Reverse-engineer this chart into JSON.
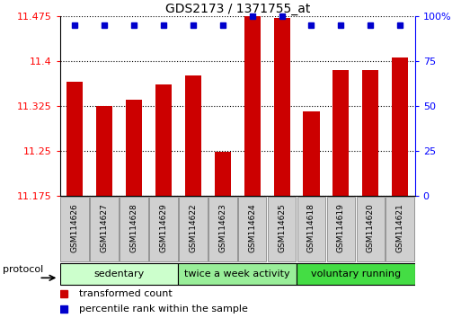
{
  "title": "GDS2173 / 1371755_at",
  "samples": [
    "GSM114626",
    "GSM114627",
    "GSM114628",
    "GSM114629",
    "GSM114622",
    "GSM114623",
    "GSM114624",
    "GSM114625",
    "GSM114618",
    "GSM114619",
    "GSM114620",
    "GSM114621"
  ],
  "red_values": [
    11.365,
    11.325,
    11.335,
    11.36,
    11.375,
    11.248,
    11.475,
    11.472,
    11.315,
    11.385,
    11.385,
    11.405
  ],
  "blue_values": [
    95,
    95,
    95,
    95,
    95,
    95,
    100,
    100,
    95,
    95,
    95,
    95
  ],
  "ymin": 11.175,
  "ymax": 11.475,
  "yticks": [
    11.175,
    11.25,
    11.325,
    11.4,
    11.475
  ],
  "y2ticks": [
    0,
    25,
    50,
    75,
    100
  ],
  "y2labels": [
    "0",
    "25",
    "50",
    "75",
    "100%"
  ],
  "groups": [
    {
      "label": "sedentary",
      "start": 0,
      "end": 3,
      "color": "#ccffcc"
    },
    {
      "label": "twice a week activity",
      "start": 4,
      "end": 7,
      "color": "#99ee99"
    },
    {
      "label": "voluntary running",
      "start": 8,
      "end": 11,
      "color": "#44dd44"
    }
  ],
  "protocol_label": "protocol",
  "legend1_color": "#cc0000",
  "legend1_label": "transformed count",
  "legend2_color": "#0000cc",
  "legend2_label": "percentile rank within the sample",
  "bar_color": "#cc0000",
  "dot_color": "#0000cc"
}
